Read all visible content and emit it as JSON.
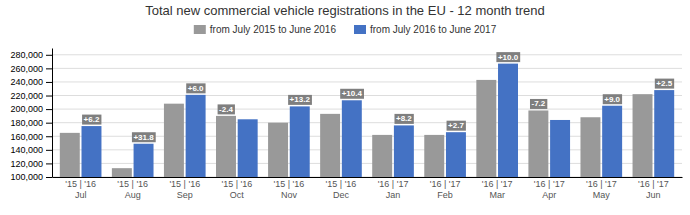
{
  "chart_data": {
    "type": "bar",
    "title": "Total new commercial vehicle registrations in the EU - 12 month trend",
    "categories": [
      "'15 | '16\nJul",
      "'15 | '16\nAug",
      "'15 | '16\nSep",
      "'15 | '16\nOct",
      "'15 | '16\nNov",
      "'15 | '16\nDec",
      "'16 | '17\nJan",
      "'16 | '17\nFeb",
      "'16 | '17\nMar",
      "'16 | '17\nApr",
      "'16 | '17\nMay",
      "'16 | '17\nJun"
    ],
    "series": [
      {
        "name": "from July 2015 to June 2016",
        "color": "#999999",
        "values": [
          165000,
          113000,
          208000,
          190000,
          180000,
          193000,
          162000,
          162000,
          243000,
          198000,
          188000,
          222000
        ]
      },
      {
        "name": "from July 2016 to June 2017",
        "color": "#4472C4",
        "values": [
          175000,
          149000,
          221000,
          185000,
          204000,
          213000,
          176000,
          166000,
          267000,
          184000,
          205000,
          228000
        ]
      }
    ],
    "annotations": [
      "+6.2",
      "+31.8",
      "+6.0",
      "-2.4",
      "+13.2",
      "+10.4",
      "+8.2",
      "+2.7",
      "+10.0",
      "-7.2",
      "+9.0",
      "+2.5"
    ],
    "ylim": [
      100000,
      290000
    ],
    "yticks": [
      {
        "value": 100000,
        "label": "100,000"
      },
      {
        "value": 120000,
        "label": "120,000"
      },
      {
        "value": 140000,
        "label": "140,000"
      },
      {
        "value": 160000,
        "label": "160,000"
      },
      {
        "value": 180000,
        "label": "180,000"
      },
      {
        "value": 200000,
        "label": "200,000"
      },
      {
        "value": 220000,
        "label": "220,000"
      },
      {
        "value": 240000,
        "label": "240,000"
      },
      {
        "value": 260000,
        "label": "260,000"
      },
      {
        "value": 280000,
        "label": "280,000"
      }
    ],
    "grid": true,
    "legend": "top"
  }
}
